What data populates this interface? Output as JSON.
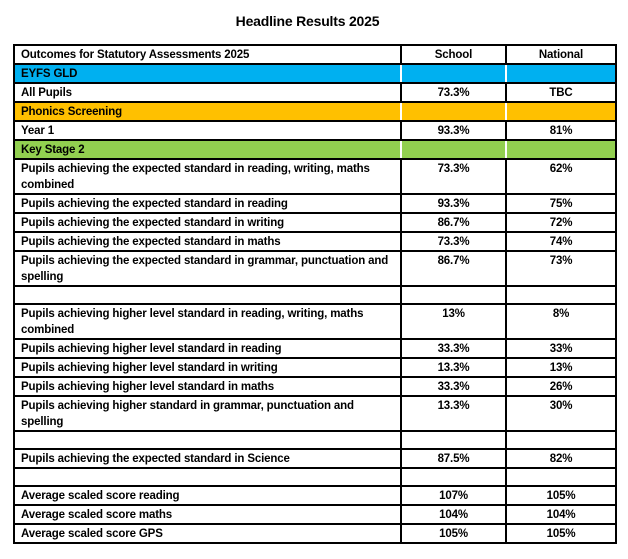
{
  "page": {
    "title": "Headline Results 2025"
  },
  "colors": {
    "blue": "#00B0F0",
    "orange": "#FFC000",
    "green": "#92D050",
    "border": "#000000",
    "text": "#000000"
  },
  "table": {
    "headers": [
      "Outcomes for Statutory Assessments 2025",
      "School",
      "National"
    ],
    "rows": [
      {
        "type": "section",
        "color": "blue",
        "label": "EYFS GLD",
        "school": "",
        "national": ""
      },
      {
        "type": "data",
        "label": "All Pupils",
        "school": "73.3%",
        "national": "TBC"
      },
      {
        "type": "section",
        "color": "orange",
        "label": "Phonics Screening",
        "school": "",
        "national": ""
      },
      {
        "type": "data",
        "label": "Year 1",
        "school": "93.3%",
        "national": "81%"
      },
      {
        "type": "section",
        "color": "green",
        "label": "Key Stage 2",
        "school": "",
        "national": ""
      },
      {
        "type": "data",
        "label": "Pupils achieving the expected standard in reading, writing, maths combined",
        "school": "73.3%",
        "national": "62%"
      },
      {
        "type": "data",
        "label": "Pupils achieving the expected standard in reading",
        "school": "93.3%",
        "national": "75%"
      },
      {
        "type": "data",
        "label": "Pupils achieving the expected standard in writing",
        "school": "86.7%",
        "national": "72%"
      },
      {
        "type": "data",
        "label": "Pupils achieving the expected standard in maths",
        "school": "73.3%",
        "national": "74%"
      },
      {
        "type": "data",
        "label": "Pupils achieving the expected standard in grammar, punctuation and spelling",
        "school": "86.7%",
        "national": "73%"
      },
      {
        "type": "empty",
        "label": "",
        "school": "",
        "national": ""
      },
      {
        "type": "data",
        "label": "Pupils achieving higher level standard in reading, writing, maths combined",
        "school": "13%",
        "national": "8%"
      },
      {
        "type": "data",
        "label": "Pupils achieving higher level standard in reading",
        "school": "33.3%",
        "national": "33%"
      },
      {
        "type": "data",
        "label": "Pupils achieving higher level standard in writing",
        "school": "13.3%",
        "national": "13%"
      },
      {
        "type": "data",
        "label": "Pupils achieving higher level standard in maths",
        "school": "33.3%",
        "national": "26%"
      },
      {
        "type": "data",
        "label": "Pupils achieving higher standard in grammar, punctuation and spelling",
        "school": "13.3%",
        "national": "30%"
      },
      {
        "type": "empty",
        "label": "",
        "school": "",
        "national": ""
      },
      {
        "type": "data",
        "label": "Pupils achieving the expected standard in Science",
        "school": "87.5%",
        "national": "82%"
      },
      {
        "type": "empty",
        "label": "",
        "school": "",
        "national": ""
      },
      {
        "type": "data",
        "label": "Average scaled score reading",
        "school": "107%",
        "national": "105%"
      },
      {
        "type": "data",
        "label": "Average scaled score maths",
        "school": "104%",
        "national": "104%"
      },
      {
        "type": "data",
        "label": "Average scaled score GPS",
        "school": "105%",
        "national": "105%"
      }
    ]
  }
}
